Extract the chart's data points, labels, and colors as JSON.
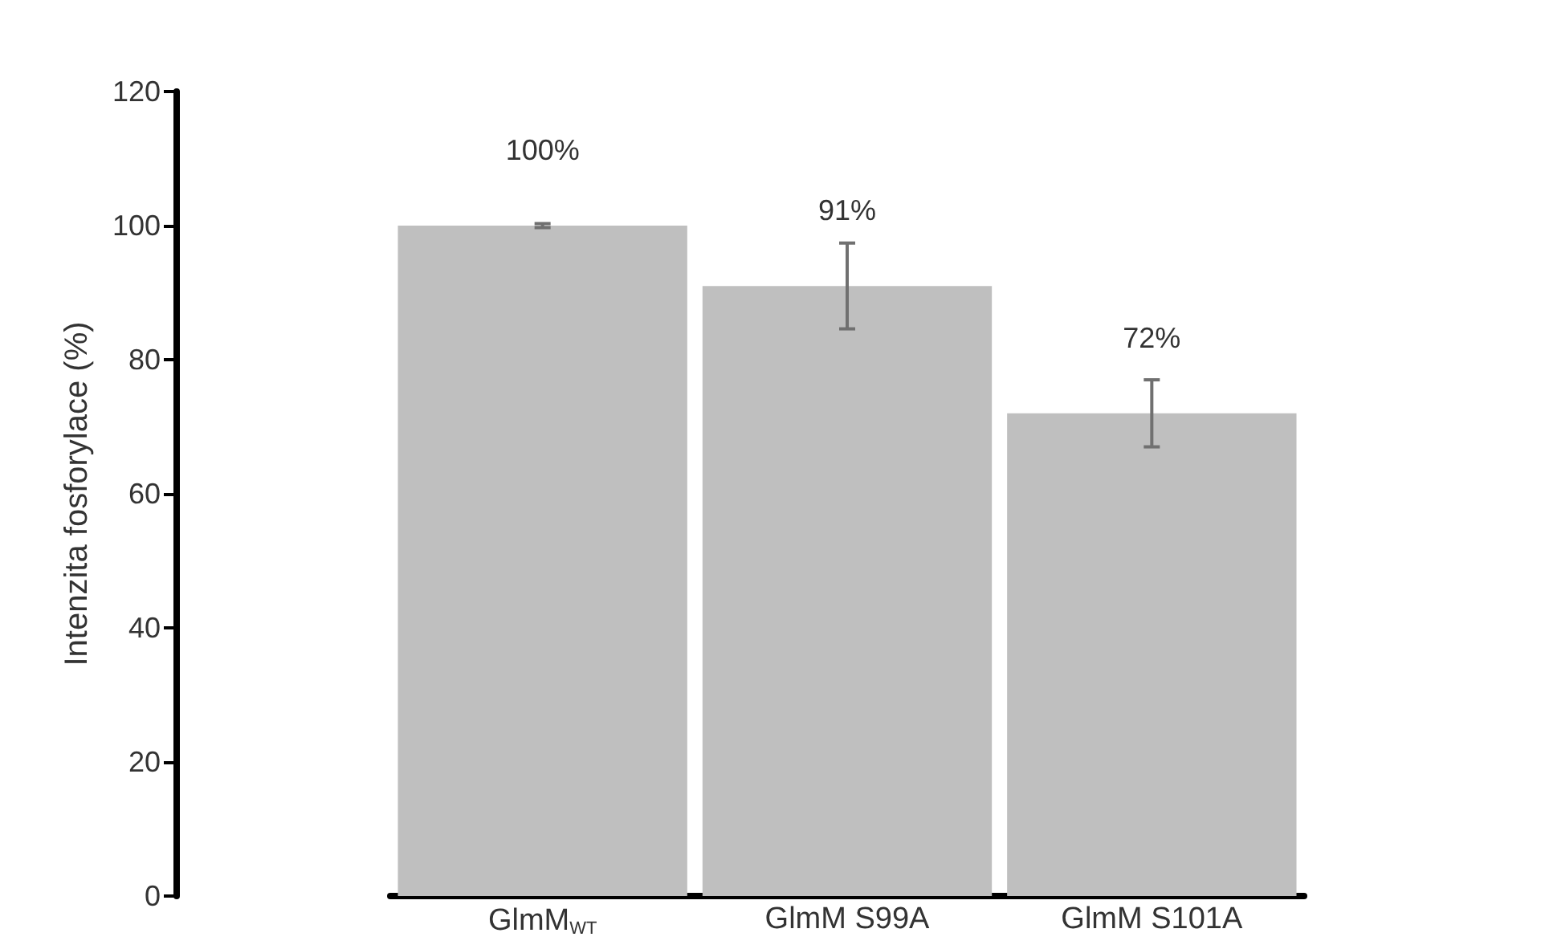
{
  "chart_data": {
    "type": "bar",
    "ylabel": "Intenzita fosforylace (%)",
    "categories": [
      "GlmM$_{WT}$",
      "GlmM S99A",
      "GlmM S101A"
    ],
    "values": [
      100,
      91,
      72
    ],
    "errors": [
      0.3,
      6.4,
      5
    ],
    "value_labels": [
      "100%",
      "91%",
      "72%"
    ],
    "color": "#bfbfbf",
    "ylim": [
      0,
      120
    ],
    "yticks": [
      0,
      20,
      40,
      60,
      80,
      100,
      120
    ],
    "grid": false
  }
}
